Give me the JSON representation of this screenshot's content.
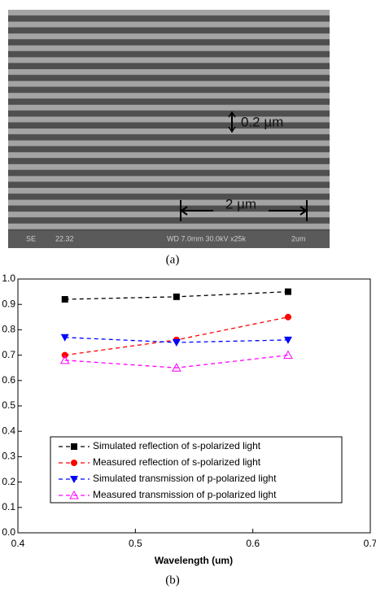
{
  "figure_a": {
    "scale_small": "0.2 µm",
    "scale_large": "2 µm",
    "footer": [
      "SE",
      "22.32",
      "WD 7.0mm 30.0kV x25k",
      "2um"
    ],
    "caption": "(a)"
  },
  "chart_data": {
    "type": "line",
    "xlabel": "Wavelength (um)",
    "x": [
      0.44,
      0.535,
      0.63
    ],
    "series": [
      {
        "name": "Simulated reflection of s-polarized light",
        "color": "#000000",
        "marker": "square",
        "values": [
          0.92,
          0.93,
          0.95
        ]
      },
      {
        "name": "Measured reflection of s-polarized light",
        "color": "#ff0000",
        "marker": "circle",
        "values": [
          0.7,
          0.76,
          0.85
        ]
      },
      {
        "name": "Simulated transmission of p-polarized light",
        "color": "#0000ff",
        "marker": "triangle-down",
        "values": [
          0.77,
          0.75,
          0.76
        ]
      },
      {
        "name": "Measured transmission of p-polarized light",
        "color": "#ff00ff",
        "marker": "triangle-up-open",
        "values": [
          0.68,
          0.65,
          0.7
        ]
      }
    ],
    "xlim": [
      0.4,
      0.7
    ],
    "xticks": [
      0.4,
      0.5,
      0.6,
      0.7
    ],
    "ylim": [
      0,
      1
    ],
    "yticks": [
      {
        "value": 0,
        "label": "0.0"
      },
      0.1,
      0.2,
      0.3,
      0.4,
      0.5,
      0.6,
      0.7,
      0.8,
      0.9,
      {
        "value": 1,
        "label": "1.0"
      }
    ],
    "legend": "lower left",
    "grid": false
  },
  "caption_b": "(b)"
}
